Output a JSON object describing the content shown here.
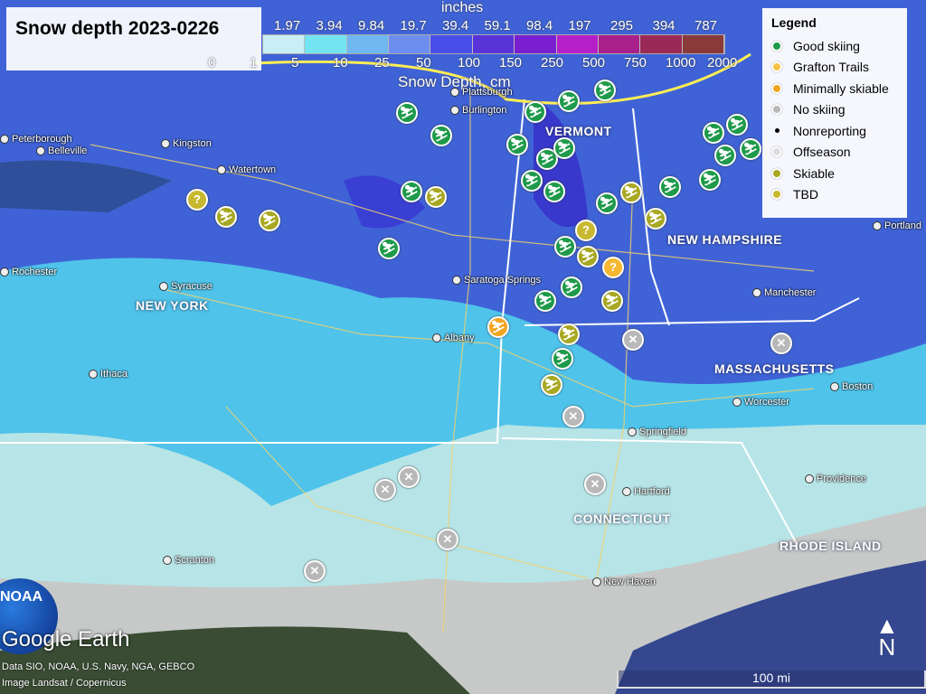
{
  "title": "Snow depth 2023-0226",
  "colorbar": {
    "unit_top": "inches",
    "unit_bottom": "Snow Depth, cm",
    "inches": [
      "1.97",
      "3.94",
      "9.84",
      "19.7",
      "39.4",
      "59.1",
      "98.4",
      "197",
      "295",
      "394",
      "787"
    ],
    "cm": [
      "0",
      "1",
      "5",
      "10",
      "25",
      "50",
      "100",
      "150",
      "250",
      "500",
      "750",
      "1000",
      "2000"
    ],
    "colors": [
      "#c9eef7",
      "#74e3f3",
      "#6fb7f0",
      "#6d8ef0",
      "#4a4ee8",
      "#5a33d8",
      "#7a1fd0",
      "#b51fc8",
      "#a8208a",
      "#9a2a55",
      "#8b3a3a"
    ]
  },
  "legend": {
    "title": "Legend",
    "items": [
      {
        "label": "Good skiing",
        "color": "#1e9a4a"
      },
      {
        "label": "Grafton Trails",
        "color": "#f5c244"
      },
      {
        "label": "Minimally skiable",
        "color": "#f0a520"
      },
      {
        "label": "No skiing",
        "color": "#b8b8b8"
      },
      {
        "label": "Nonreporting",
        "color": "#000000"
      },
      {
        "label": "Offseason",
        "color": "#dddddd"
      },
      {
        "label": "Skiable",
        "color": "#a8a822"
      },
      {
        "label": "TBD",
        "color": "#c8b830"
      }
    ]
  },
  "states": [
    "NEW YORK",
    "VERMONT",
    "NEW HAMPSHIRE",
    "MASSACHUSETTS",
    "CONNECTICUT",
    "RHODE ISLAND"
  ],
  "cities": [
    "Kingston",
    "Belleville",
    "Watertown",
    "Syracuse",
    "Ithaca",
    "Scranton",
    "Albany",
    "Saratoga Springs",
    "Plattsburgh",
    "Burlington",
    "Manchester",
    "Worcester",
    "Boston",
    "Springfield",
    "Hartford",
    "Providence",
    "New Haven",
    "Portland",
    "Rochester",
    "Peterborough"
  ],
  "markers": [
    "good",
    "good",
    "good",
    "good",
    "good",
    "good",
    "good",
    "good",
    "good",
    "good",
    "good",
    "good",
    "good",
    "good",
    "good",
    "good",
    "good",
    "good",
    "good",
    "good",
    "good",
    "good",
    "good",
    "skiable",
    "skiable",
    "skiable",
    "skiable",
    "skiable",
    "skiable",
    "skiable",
    "skiable",
    "skiable",
    "tbd",
    "tbd",
    "grafton",
    "minimal",
    "no",
    "no",
    "no",
    "no",
    "no",
    "no",
    "no",
    "no"
  ],
  "marker_icons": {
    "good": "skier-icon",
    "skiable": "skier-icon",
    "minimal": "skier-icon",
    "tbd": "question-icon",
    "grafton": "question-icon",
    "no": "x-icon"
  },
  "credits": {
    "brand": "Google Earth",
    "logo": "NOAA",
    "data": "Data SIO, NOAA, U.S. Navy, NGA, GEBCO",
    "image": "Image Landsat / Copernicus"
  },
  "scale": "100 mi",
  "north": "N"
}
